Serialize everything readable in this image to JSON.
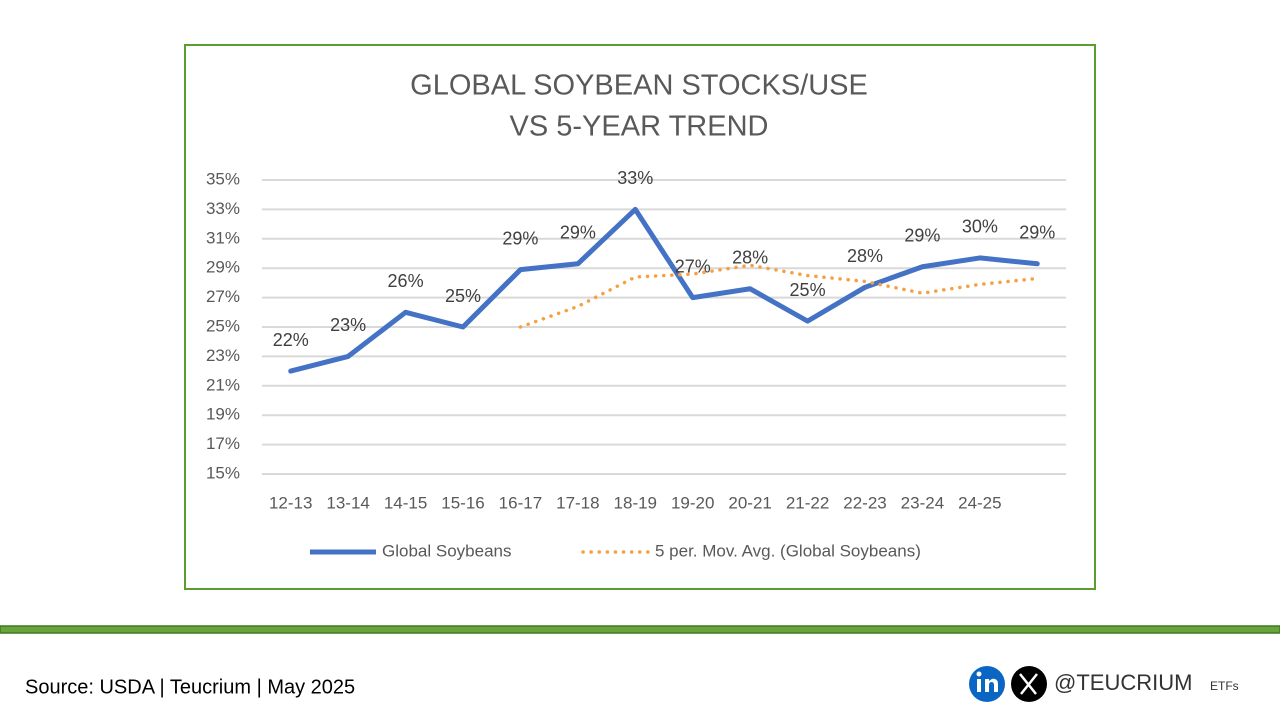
{
  "chart_data": {
    "type": "line",
    "title": [
      "GLOBAL SOYBEAN STOCKS/USE",
      "VS 5-YEAR TREND"
    ],
    "categories": [
      "12-13",
      "13-14",
      "14-15",
      "15-16",
      "16-17",
      "17-18",
      "18-19",
      "19-20",
      "20-21",
      "21-22",
      "22-23",
      "23-24",
      "24-25",
      null
    ],
    "series": [
      {
        "name": "Global Soybeans",
        "color": "#4472c4",
        "style": "solid",
        "values": [
          22,
          23,
          26,
          25,
          28.9,
          29.3,
          33,
          27,
          27.6,
          25.4,
          27.7,
          29.1,
          29.7,
          29.3
        ],
        "value_labels": [
          "22%",
          "23%",
          "26%",
          "25%",
          "29%",
          "29%",
          "33%",
          "27%",
          "28%",
          "25%",
          "28%",
          "29%",
          "30%",
          "29%"
        ]
      },
      {
        "name": "5 per. Mov. Avg. (Global Soybeans)",
        "color": "#f5a142",
        "style": "dotted",
        "values": [
          null,
          null,
          null,
          null,
          25,
          26.4,
          28.4,
          28.6,
          29.2,
          28.5,
          28.1,
          27.3,
          27.9,
          28.3
        ]
      }
    ],
    "ylim": [
      15,
      35
    ],
    "yticks": [
      {
        "value": 15,
        "label": "15%"
      },
      {
        "value": 17,
        "label": "17%"
      },
      {
        "value": 19,
        "label": "19%"
      },
      {
        "value": 21,
        "label": "21%"
      },
      {
        "value": 23,
        "label": "23%"
      },
      {
        "value": 25,
        "label": "25%"
      },
      {
        "value": 27,
        "label": "27%"
      },
      {
        "value": 29,
        "label": "29%"
      },
      {
        "value": 31,
        "label": "31%"
      },
      {
        "value": 33,
        "label": "33%"
      },
      {
        "value": 35,
        "label": "35%"
      }
    ],
    "grid": true,
    "legend": "bottom"
  },
  "footer": {
    "source": "Source: USDA | Teucrium | May 2025",
    "handle": "@TEUCRIUM",
    "suffix": "ETFs"
  }
}
